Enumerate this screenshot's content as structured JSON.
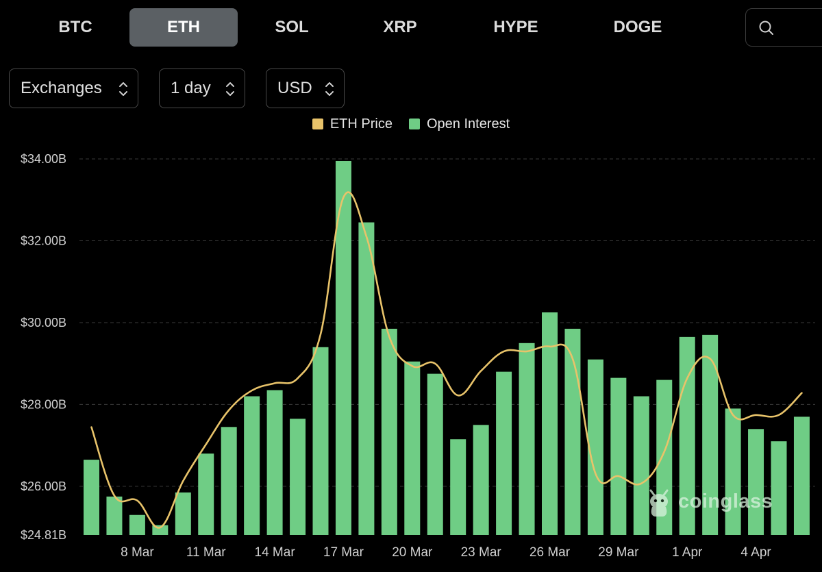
{
  "tabs": [
    {
      "label": "BTC",
      "active": false
    },
    {
      "label": "ETH",
      "active": true
    },
    {
      "label": "SOL",
      "active": false
    },
    {
      "label": "XRP",
      "active": false
    },
    {
      "label": "HYPE",
      "active": false
    },
    {
      "label": "DOGE",
      "active": false
    }
  ],
  "filters": {
    "exchanges": "Exchanges",
    "interval": "1 day",
    "currency": "USD"
  },
  "watermark": "coinglass",
  "colors": {
    "bar": "#6fcd85",
    "line": "#e8c36a",
    "grid": "#3a3a3a",
    "active_tab": "#5b6064"
  },
  "chart_data": {
    "type": "bar",
    "title": "",
    "legend": [
      "ETH Price",
      "Open Interest"
    ],
    "legend_position": "top-center",
    "y_ticks": [
      "$34.00B",
      "$32.00B",
      "$30.00B",
      "$28.00B",
      "$26.00B",
      "$24.81B"
    ],
    "y_tick_values": [
      34.0,
      32.0,
      30.0,
      28.0,
      26.0,
      24.81
    ],
    "ylim": [
      24.81,
      34.0
    ],
    "x_tick_labels": [
      "8 Mar",
      "11 Mar",
      "14 Mar",
      "17 Mar",
      "20 Mar",
      "23 Mar",
      "26 Mar",
      "29 Mar",
      "1 Apr",
      "4 Apr"
    ],
    "x_tick_indices": [
      2,
      5,
      8,
      11,
      14,
      17,
      20,
      23,
      26,
      29
    ],
    "categories": [
      "6 Mar",
      "7 Mar",
      "8 Mar",
      "9 Mar",
      "10 Mar",
      "11 Mar",
      "12 Mar",
      "13 Mar",
      "14 Mar",
      "15 Mar",
      "16 Mar",
      "17 Mar",
      "18 Mar",
      "19 Mar",
      "20 Mar",
      "21 Mar",
      "22 Mar",
      "23 Mar",
      "24 Mar",
      "25 Mar",
      "26 Mar",
      "27 Mar",
      "28 Mar",
      "29 Mar",
      "30 Mar",
      "31 Mar",
      "1 Apr",
      "2 Apr",
      "3 Apr",
      "4 Apr",
      "5 Apr",
      "6 Apr"
    ],
    "series": [
      {
        "name": "Open Interest",
        "type": "bar",
        "axis": "left",
        "values": [
          26.65,
          25.75,
          25.3,
          25.05,
          25.85,
          26.8,
          27.45,
          28.2,
          28.35,
          27.65,
          29.4,
          33.95,
          32.45,
          29.85,
          29.05,
          28.75,
          27.15,
          27.5,
          28.8,
          29.5,
          30.25,
          29.85,
          29.1,
          28.65,
          28.2,
          28.6,
          29.65,
          29.7,
          27.9,
          27.4,
          27.1,
          27.7
        ]
      },
      {
        "name": "ETH Price",
        "type": "line",
        "axis": "right",
        "values": [
          2.2,
          1.92,
          1.9,
          1.79,
          1.98,
          2.13,
          2.27,
          2.35,
          2.38,
          2.4,
          2.58,
          3.14,
          2.98,
          2.57,
          2.45,
          2.46,
          2.33,
          2.43,
          2.51,
          2.51,
          2.53,
          2.48,
          2.01,
          2.0,
          1.97,
          2.1,
          2.4,
          2.48,
          2.25,
          2.25,
          2.25,
          2.34
        ]
      }
    ]
  }
}
